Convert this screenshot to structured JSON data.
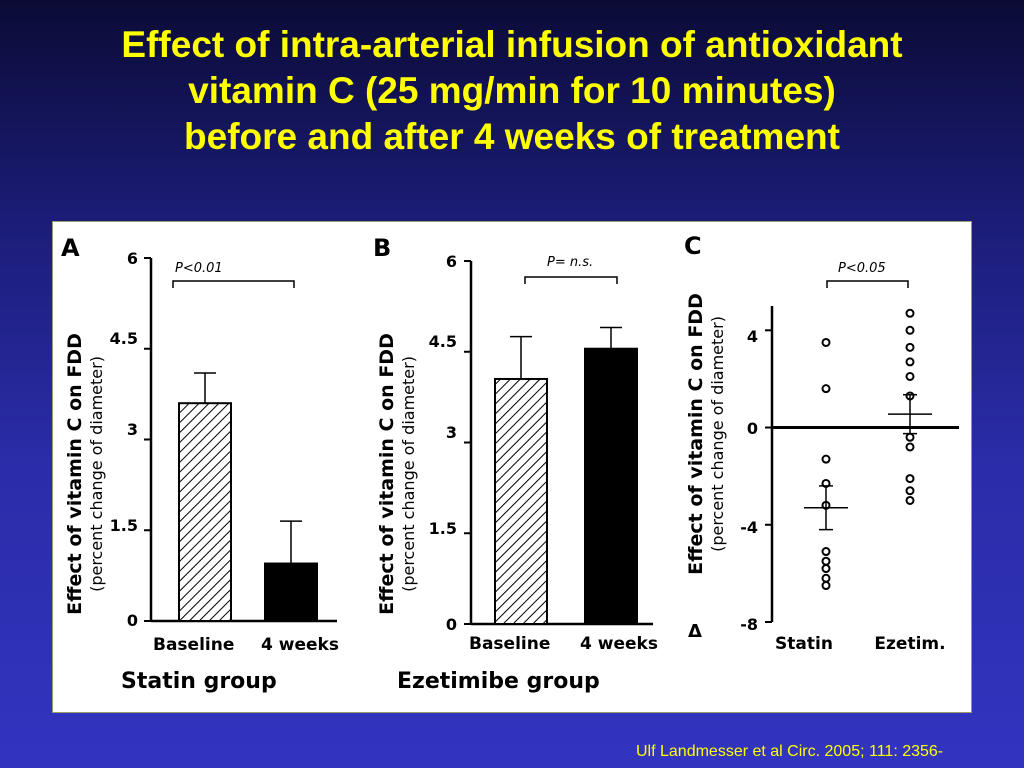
{
  "slide": {
    "title_lines": [
      "Effect of intra-arterial infusion of antioxidant",
      "vitamin C (25 mg/min for 10 minutes)",
      "before and after 4 weeks of treatment"
    ],
    "citation": "Ulf Landmesser et al Circ. 2005; 111: 2356-"
  },
  "colors": {
    "background": "#2a2ca8",
    "title": "#ffff00",
    "panel": "#ffffff",
    "ink": "#000000"
  },
  "chart_data": [
    {
      "panel": "A",
      "type": "bar",
      "categories": [
        "Baseline",
        "4 weeks"
      ],
      "values": [
        3.6,
        0.95
      ],
      "errors": [
        0.5,
        0.7
      ],
      "fills": [
        "hatched",
        "solid"
      ],
      "ylim": [
        0,
        6
      ],
      "yticks": [
        "6",
        "4.5",
        "3",
        "1.5",
        "0"
      ],
      "ytick_values": [
        6,
        4.5,
        3,
        1.5,
        0
      ],
      "ylabel": "Effect of vitamin C on FDD",
      "ylabel_sub": "(percent change of diameter)",
      "xlabel": "Statin group",
      "significance": "P<0.01"
    },
    {
      "panel": "B",
      "type": "bar",
      "categories": [
        "Baseline",
        "4 weeks"
      ],
      "values": [
        4.05,
        4.55
      ],
      "errors": [
        0.7,
        0.35
      ],
      "fills": [
        "hatched",
        "solid"
      ],
      "ylim": [
        0,
        6
      ],
      "yticks": [
        "6",
        "4.5",
        "3",
        "1.5",
        "0"
      ],
      "ytick_values": [
        6,
        4.5,
        3,
        1.5,
        0
      ],
      "ylabel": "Effect of vitamin C on FDD",
      "ylabel_sub": "(percent change of diameter)",
      "xlabel": "Ezetimibe group",
      "significance": "P= n.s."
    },
    {
      "panel": "C",
      "type": "scatter",
      "categories": [
        "Statin",
        "Ezetim."
      ],
      "points": [
        [
          3.5,
          1.6,
          -1.3,
          -2.3,
          -3.2,
          -5.1,
          -5.5,
          -5.8,
          -6.2,
          -6.5
        ],
        [
          4.7,
          4.0,
          3.3,
          2.7,
          2.1,
          1.3,
          -0.4,
          -0.8,
          -2.1,
          -2.6,
          -3.0
        ]
      ],
      "means": [
        -3.3,
        0.55
      ],
      "sem": [
        0.9,
        0.8
      ],
      "ylim": [
        -8,
        5
      ],
      "yticks": [
        "4",
        "0",
        "-4",
        "-8"
      ],
      "ytick_values": [
        4,
        0,
        -4,
        -8
      ],
      "ylabel_prefix": "Δ",
      "ylabel": "Effect of vitamin C on FDD",
      "ylabel_sub": "(percent change of diameter)",
      "significance": "P<0.05"
    }
  ]
}
